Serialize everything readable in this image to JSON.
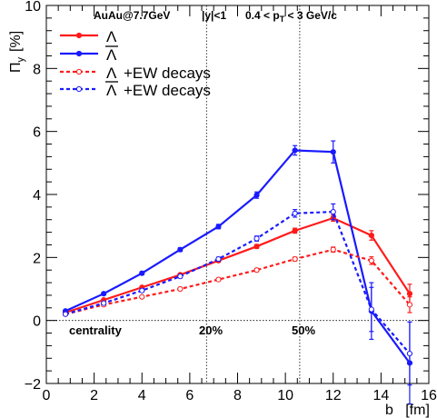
{
  "chart_data": {
    "type": "line",
    "header": {
      "collision": "AuAu@7.7GeV",
      "rapidity": "|y|<1",
      "pt_range_prefix": "0.4 < p",
      "pt_range_sub": "T",
      "pt_range_suffix": " < 3 GeV/c"
    },
    "ylabel_main": "Π",
    "ylabel_sub": "y",
    "ylabel_unit": "[%]",
    "xlabel": "b   [fm]",
    "xlim": [
      0,
      16
    ],
    "ylim": [
      -2,
      10
    ],
    "x_ticks": [
      "0",
      "2",
      "4",
      "6",
      "8",
      "10",
      "12",
      "14",
      "16"
    ],
    "y_ticks": [
      "−2",
      "0",
      "2",
      "4",
      "6",
      "8",
      "10"
    ],
    "annotations": {
      "centrality": "centrality",
      "c20": "20%",
      "c50": "50%"
    },
    "centrality_lines_b": [
      6.7,
      10.6
    ],
    "colors": {
      "lambda": "#ff1a1a",
      "antilambda": "#1a1aff"
    },
    "series": [
      {
        "name": "Λ",
        "color": "#ff1a1a",
        "dash": false,
        "x": [
          0.8,
          2.4,
          4.0,
          5.6,
          7.2,
          8.8,
          10.4,
          12.0,
          13.6,
          15.2
        ],
        "y": [
          0.25,
          0.65,
          1.05,
          1.45,
          1.9,
          2.35,
          2.85,
          3.25,
          2.7,
          0.85
        ],
        "err": [
          0.03,
          0.03,
          0.03,
          0.04,
          0.05,
          0.06,
          0.08,
          0.1,
          0.15,
          0.3
        ]
      },
      {
        "name": "Λ̄",
        "color": "#1a1aff",
        "dash": false,
        "x": [
          0.8,
          2.4,
          4.0,
          5.6,
          7.2,
          8.8,
          10.4,
          12.0,
          13.6,
          15.2
        ],
        "y": [
          0.3,
          0.85,
          1.5,
          2.25,
          2.98,
          3.98,
          5.4,
          5.35,
          0.3,
          -1.35
        ],
        "err": [
          0.04,
          0.04,
          0.05,
          0.06,
          0.07,
          0.1,
          0.15,
          0.35,
          0.9,
          1.3
        ]
      },
      {
        "name": "Λ +EW decays",
        "color": "#ff1a1a",
        "dash": true,
        "x": [
          0.8,
          2.4,
          4.0,
          5.6,
          7.2,
          8.8,
          10.4,
          12.0,
          13.6,
          15.2
        ],
        "y": [
          0.2,
          0.5,
          0.75,
          1.0,
          1.3,
          1.6,
          1.95,
          2.25,
          1.9,
          0.5
        ],
        "err": [
          0.03,
          0.03,
          0.03,
          0.03,
          0.04,
          0.05,
          0.06,
          0.08,
          0.12,
          0.25
        ]
      },
      {
        "name": "Λ̄ +EW decays",
        "color": "#1a1aff",
        "dash": true,
        "x": [
          0.8,
          2.4,
          4.0,
          5.6,
          7.2,
          8.8,
          10.4,
          12.0,
          13.6,
          15.2
        ],
        "y": [
          0.2,
          0.55,
          0.95,
          1.4,
          1.95,
          2.6,
          3.4,
          3.45,
          0.35,
          -1.05
        ],
        "err": [
          0.04,
          0.04,
          0.05,
          0.05,
          0.06,
          0.08,
          0.12,
          0.25,
          0.7,
          1.0
        ]
      }
    ],
    "legend": [
      {
        "symbol": "Λ",
        "bar": false,
        "suffix": "",
        "color": "#ff1a1a",
        "dash": false
      },
      {
        "symbol": "Λ",
        "bar": true,
        "suffix": "",
        "color": "#1a1aff",
        "dash": false
      },
      {
        "symbol": "Λ",
        "bar": false,
        "suffix": " +EW decays",
        "color": "#ff1a1a",
        "dash": true
      },
      {
        "symbol": "Λ",
        "bar": true,
        "suffix": " +EW decays",
        "color": "#1a1aff",
        "dash": true
      }
    ]
  }
}
